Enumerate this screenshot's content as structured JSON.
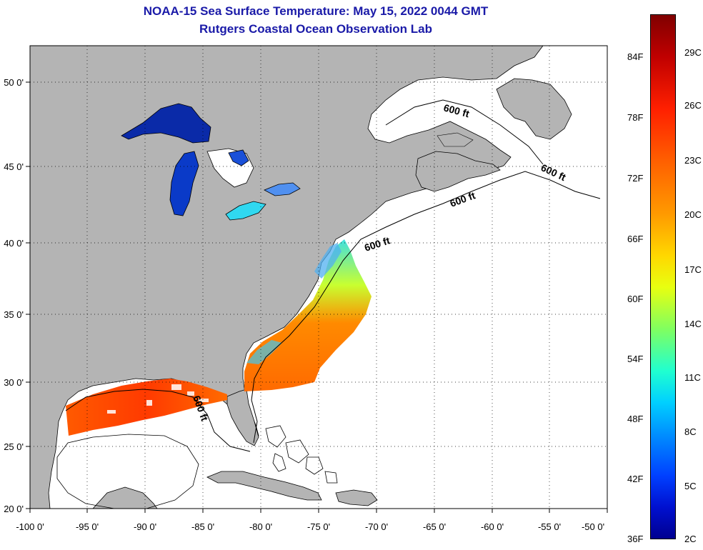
{
  "title": "NOAA-15 Sea Surface Temperature:  May 15, 2022 0044 GMT",
  "subtitle": "Rutgers Coastal Ocean Observation Lab",
  "axes": {
    "lat_labels": [
      "50 0'",
      "45 0'",
      "40 0'",
      "35 0'",
      "30 0'",
      "25 0'",
      "20 0'"
    ],
    "lon_labels": [
      "-100 0'",
      "-95 0'",
      "-90 0'",
      "-85 0'",
      "-80 0'",
      "-75 0'",
      "-70 0'",
      "-65 0'",
      "-60 0'",
      "-55 0'",
      "-50 0'"
    ],
    "lat_range": [
      20,
      52.5
    ],
    "lon_range": [
      -100,
      -50
    ],
    "grid": "dotted"
  },
  "isobath_label": "600 ft",
  "colorbar": {
    "fahrenheit": [
      "84F",
      "78F",
      "72F",
      "66F",
      "60F",
      "54F",
      "48F",
      "42F",
      "36F"
    ],
    "celsius": [
      "29C",
      "26C",
      "23C",
      "20C",
      "17C",
      "14C",
      "11C",
      "8C",
      "5C",
      "2C"
    ],
    "scale": "jet (dark blue cold to dark red warm)"
  },
  "colors": {
    "title": "#1a1aa8",
    "land": "#b4b4b4",
    "ocean_no_data": "#ffffff"
  }
}
